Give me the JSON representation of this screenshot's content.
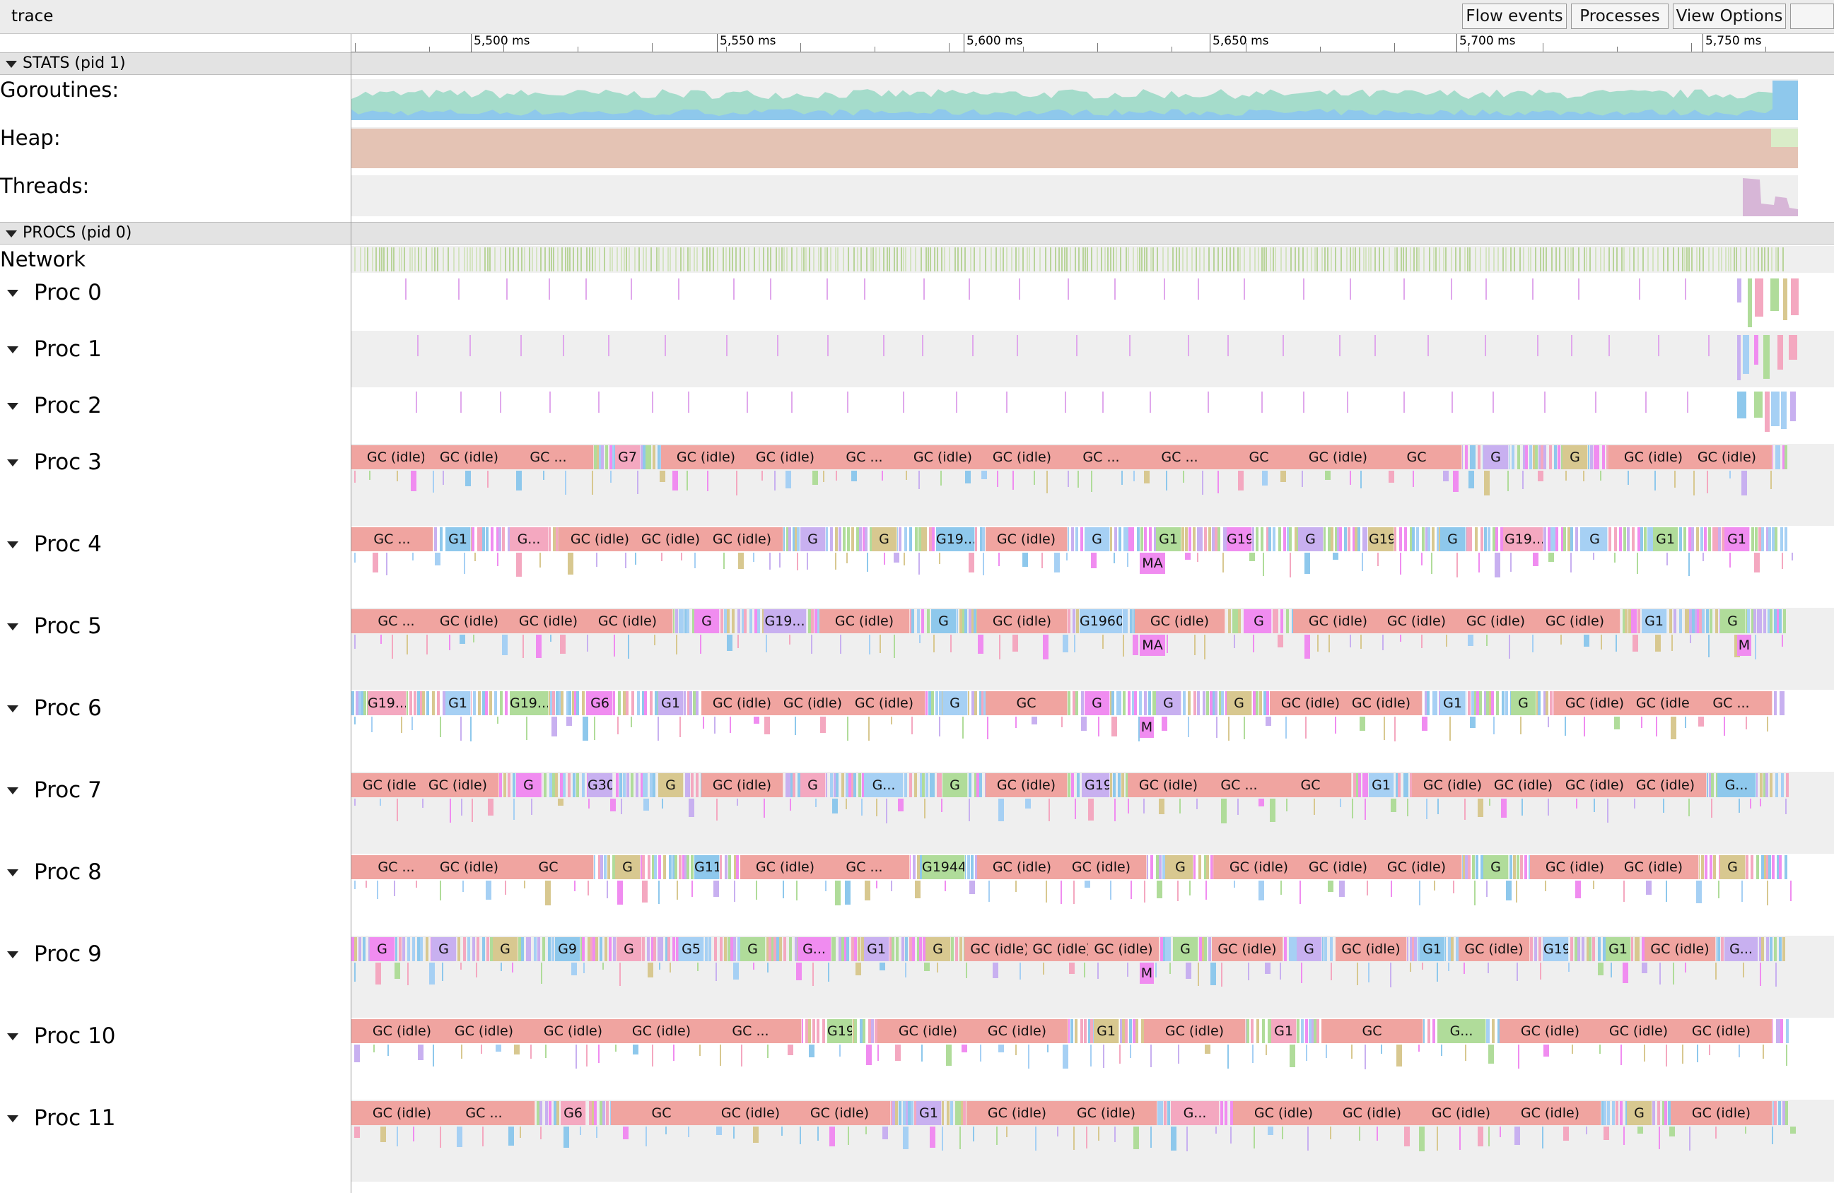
{
  "app": {
    "title": "trace"
  },
  "toolbar": {
    "flow_events": "Flow events",
    "processes": "Processes",
    "view_options": "View Options"
  },
  "ruler": {
    "ticks": [
      "5,500 ms",
      "5,550 ms",
      "5,600 ms",
      "5,650 ms",
      "5,700 ms",
      "5,750 ms"
    ]
  },
  "stats_group": {
    "label": "STATS (pid 1)",
    "counters": [
      {
        "label": "Goroutines:",
        "colors": [
          "#a5dccb",
          "#8ec8ec",
          "#b4ded4"
        ]
      },
      {
        "label": "Heap:",
        "colors": [
          "#e4c3b4",
          "#d9ecc8"
        ]
      },
      {
        "label": "Threads:",
        "colors": [
          "#d7b6d7",
          "#c9a8cf"
        ]
      }
    ]
  },
  "procs_group": {
    "label": "PROCS (pid 0)",
    "network_label": "Network",
    "procs": [
      {
        "label": "Proc 0",
        "slices": [],
        "subs": []
      },
      {
        "label": "Proc 1",
        "slices": [],
        "subs": []
      },
      {
        "label": "Proc 2",
        "slices": [],
        "subs": []
      },
      {
        "label": "Proc 3",
        "slices": [
          "GC (idle)",
          "GC (idle)",
          "GC ...",
          "G7",
          "GC (idle)",
          "GC (idle)",
          "GC ...",
          "GC (idle)",
          "GC (idle)",
          "GC ...",
          "GC ...",
          "GC",
          "GC (idle)",
          "GC",
          "G",
          "G",
          "GC (idle)",
          "GC (idle)"
        ],
        "subs": []
      },
      {
        "label": "Proc 4",
        "slices": [
          "GC ...",
          "G1",
          "G...",
          "GC (idle)",
          "GC (idle)",
          "GC (idle)",
          "G",
          "G",
          "G19...",
          "GC (idle)",
          "G",
          "G1",
          "G19",
          "G",
          "G19",
          "G",
          "G19...",
          "G",
          "G1",
          "G1"
        ],
        "subs": [
          "MA"
        ]
      },
      {
        "label": "Proc 5",
        "slices": [
          "GC ...",
          "GC (idle)",
          "GC (idle)",
          "GC (idle)",
          "G",
          "G19...",
          "GC (idle)",
          "G",
          "GC (idle)",
          "G19602...",
          "GC (idle)",
          "G",
          "GC (idle)",
          "GC (idle)",
          "GC (idle)",
          "GC (idle)",
          "G1",
          "G"
        ],
        "subs": [
          "MA",
          "M"
        ]
      },
      {
        "label": "Proc 6",
        "slices": [
          "G19...",
          "G1",
          "G19...",
          "G6",
          "G1",
          "GC (idle)",
          "GC (idle)",
          "GC (idle)",
          "G",
          "GC",
          "G",
          "G",
          "G",
          "GC (idle)",
          "GC (idle)",
          "G1",
          "G",
          "GC (idle)",
          "GC (idle)",
          "GC ..."
        ],
        "subs": [
          "M"
        ]
      },
      {
        "label": "Proc 7",
        "slices": [
          "GC (idle)",
          "GC (idle)",
          "G",
          "G30",
          "G",
          "GC (idle)",
          "G",
          "G...",
          "G",
          "GC (idle)",
          "G19",
          "GC (idle)",
          "GC ...",
          "GC",
          "G1",
          "GC (idle)",
          "GC (idle)",
          "GC (idle)",
          "GC (idle)",
          "G..."
        ],
        "subs": []
      },
      {
        "label": "Proc 8",
        "slices": [
          "GC ...",
          "GC (idle)",
          "GC",
          "G",
          "G11",
          "GC (idle)",
          "GC ...",
          "G19446...",
          "GC (idle)",
          "GC (idle)",
          "G",
          "GC (idle)",
          "GC (idle)",
          "GC (idle)",
          "G",
          "GC (idle)",
          "GC (idle)",
          "G"
        ],
        "subs": []
      },
      {
        "label": "Proc 9",
        "slices": [
          "G",
          "G",
          "G",
          "G9",
          "G",
          "G5",
          "G",
          "G...",
          "G1",
          "G",
          "GC (idle)",
          "GC (idle)",
          "GC (idle)",
          "G",
          "GC (idle)",
          "G",
          "GC (idle)",
          "G1",
          "GC (idle)",
          "G19",
          "G1",
          "GC (idle)",
          "G..."
        ],
        "subs": [
          "M"
        ]
      },
      {
        "label": "Proc 10",
        "slices": [
          "GC (idle)",
          "GC (idle)",
          "GC (idle)",
          "GC (idle)",
          "GC ...",
          "G19",
          "GC (idle)",
          "GC (idle)",
          "G1",
          "GC (idle)",
          "G1",
          "GC",
          "G...",
          "GC (idle)",
          "GC (idle)",
          "GC (idle)"
        ],
        "subs": []
      },
      {
        "label": "Proc 11",
        "slices": [
          "GC (idle)",
          "GC ...",
          "G6",
          "GC",
          "GC (idle)",
          "GC (idle)",
          "G1",
          "GC (idle)",
          "GC (idle)",
          "G...",
          "GC (idle)",
          "GC (idle)",
          "GC (idle)",
          "GC (idle)",
          "G",
          "GC (idle)"
        ],
        "subs": []
      }
    ]
  },
  "colors": {
    "gc_idle": "#f0a4a0",
    "palette": [
      "#a6d0f4",
      "#b0dc9a",
      "#f08cf0",
      "#c8b0f0",
      "#d8c890",
      "#8ec8ec",
      "#f4a8c0"
    ]
  }
}
